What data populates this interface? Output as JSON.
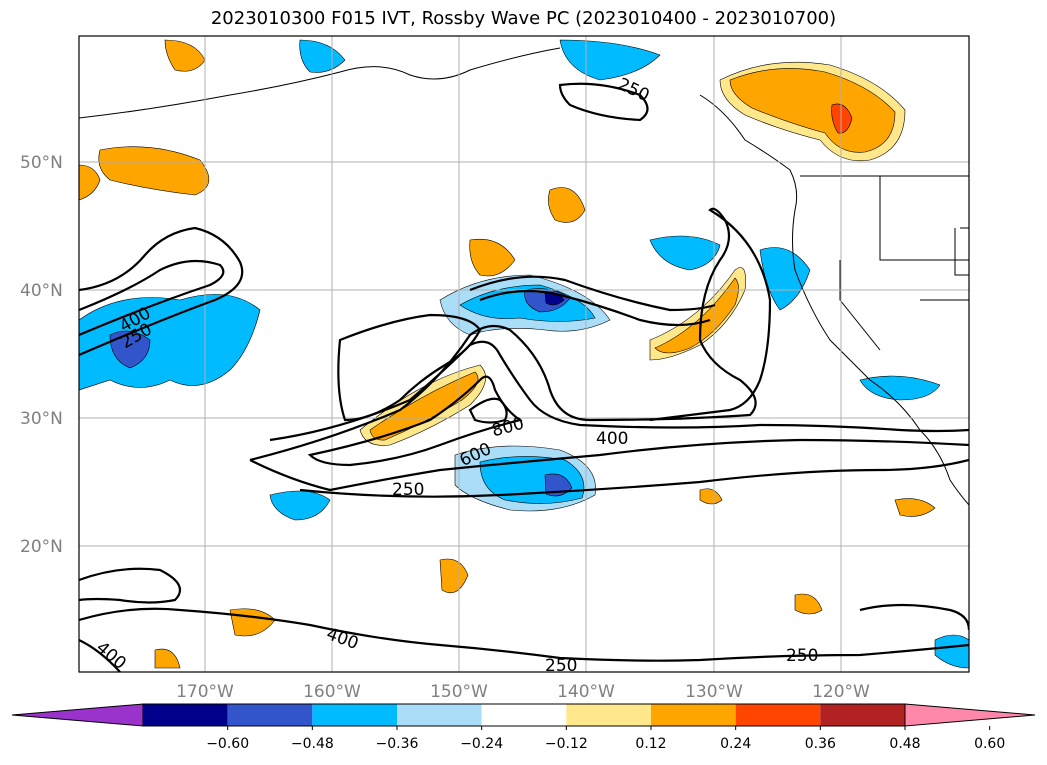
{
  "title": "2023010300 F015 IVT, Rossby Wave PC (2023010400 - 2023010700)",
  "map": {
    "lat_labels": [
      "50°N",
      "40°N",
      "30°N",
      "20°N"
    ],
    "lon_labels": [
      "170°W",
      "160°W",
      "150°W",
      "140°W",
      "130°W",
      "120°W"
    ],
    "gridlines": true
  },
  "ivt_contour_labels": [
    "250",
    "400",
    "250",
    "600",
    "800",
    "400",
    "250",
    "400",
    "400",
    "250",
    "250"
  ],
  "colorbar": {
    "ticks": [
      "−0.60",
      "−0.48",
      "−0.36",
      "−0.24",
      "−0.12",
      "0.12",
      "0.24",
      "0.36",
      "0.48",
      "0.60"
    ],
    "colors": [
      "#9933cc",
      "#00008b",
      "#3355cc",
      "#00bbff",
      "#aaddf7",
      "#ffffff",
      "#ffe88c",
      "#ffa500",
      "#ff4500",
      "#b22222",
      "#ff88aa"
    ],
    "extend": "both"
  }
}
